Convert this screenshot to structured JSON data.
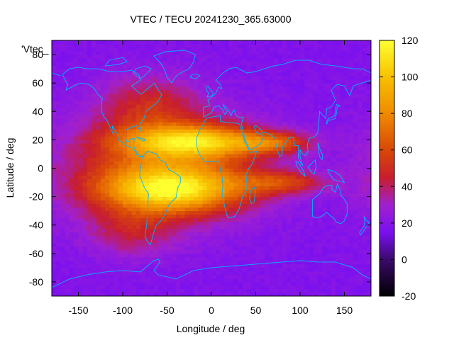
{
  "chart_data": {
    "type": "heatmap",
    "title": "VTEC / TECU 20241230_365.63000",
    "key_label": "'Vtec_",
    "xlabel": "Longitude / deg",
    "ylabel": "Latitude / deg",
    "xlim": [
      -180,
      180
    ],
    "ylim": [
      -90,
      90
    ],
    "xticks": [
      -150,
      -100,
      -50,
      0,
      50,
      100,
      150
    ],
    "yticks": [
      -80,
      -60,
      -40,
      -20,
      0,
      20,
      40,
      60,
      80
    ],
    "colorbar": {
      "range": [
        -20,
        120
      ],
      "ticks": [
        -20,
        0,
        20,
        40,
        60,
        80,
        100,
        120
      ],
      "palette": [
        {
          "v": -20,
          "color": "#000000"
        },
        {
          "v": 0,
          "color": "#3a0a6a"
        },
        {
          "v": 15,
          "color": "#7a10f0"
        },
        {
          "v": 30,
          "color": "#a020d0"
        },
        {
          "v": 45,
          "color": "#c81e2e"
        },
        {
          "v": 60,
          "color": "#d84808"
        },
        {
          "v": 80,
          "color": "#f08a00"
        },
        {
          "v": 100,
          "color": "#f8c000"
        },
        {
          "v": 120,
          "color": "#ffff30"
        }
      ]
    },
    "grid_resolution_deg": {
      "lon": 5,
      "lat": 2.5
    },
    "field_features": [
      {
        "name": "background",
        "value": 18
      },
      {
        "name": "northern-ionization-crest",
        "lon": -20,
        "lat": 19,
        "amplitude": 68,
        "lon_width": 55,
        "lat_width": 8
      },
      {
        "name": "southern-ionization-crest",
        "lon": -45,
        "lat": -15,
        "amplitude": 70,
        "lon_width": 55,
        "lat_width": 11
      },
      {
        "name": "equatorial-band",
        "lon": -55,
        "lat": 0,
        "amplitude": 44,
        "lon_width": 75,
        "lat_width": 25
      },
      {
        "name": "north-atlantic-extension",
        "lon": -70,
        "lat": 45,
        "amplitude": 25,
        "lon_width": 40,
        "lat_width": 15
      },
      {
        "name": "southern-pacific-extension",
        "lon": -90,
        "lat": -45,
        "amplitude": 20,
        "lon_width": 35,
        "lat_width": 12
      },
      {
        "name": "northern-indian-ocean-streamer",
        "lon": 70,
        "lat": 18,
        "amplitude": 35,
        "lon_width": 30,
        "lat_width": 5
      },
      {
        "name": "southern-indian-ocean-streamer",
        "lon": 80,
        "lat": -10,
        "amplitude": 33,
        "lon_width": 35,
        "lat_width": 6
      }
    ],
    "overlay": "coastlines"
  },
  "colors": {
    "coastline": "#00b4ff",
    "axes": "#000000",
    "background": "#ffffff"
  }
}
